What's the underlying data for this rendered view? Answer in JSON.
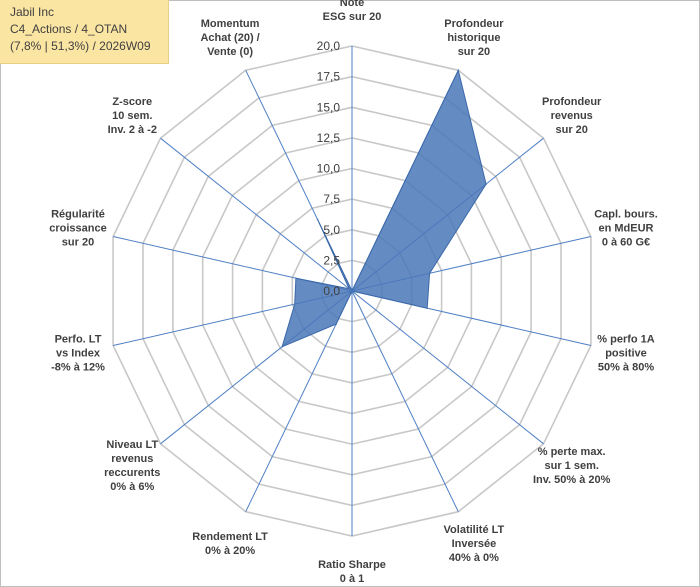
{
  "info_box": {
    "line1": "Jabil Inc",
    "line2": "C4_Actions / 4_OTAN",
    "line3": "(7,8% | 51,3%) / 2026W09"
  },
  "chart_data": {
    "type": "radar",
    "title": "",
    "scale": {
      "min": 0,
      "max": 20,
      "step": 2.5
    },
    "tick_labels": [
      "0,0",
      "2,5",
      "5,0",
      "7,5",
      "10,0",
      "12,5",
      "15,0",
      "17,5",
      "20,0"
    ],
    "categories": [
      [
        "Note",
        "ESG sur 20"
      ],
      [
        "Profondeur",
        "historique",
        "sur 20"
      ],
      [
        "Profondeur",
        "revenus",
        "sur 20"
      ],
      [
        "Capl. bours.",
        "en MdEUR",
        "0 à 60 G€"
      ],
      [
        "% perfo 1A",
        "positive",
        "50% à 80%"
      ],
      [
        "% perte max.",
        "sur 1 sem.",
        "Inv. 50% à 20%"
      ],
      [
        "Volatilité LT",
        "Inversée",
        "40% à 0%"
      ],
      [
        "Ratio Sharpe",
        "0 à 1"
      ],
      [
        "Rendement LT",
        "0% à 20%"
      ],
      [
        "Niveau LT",
        "revenus",
        "reccurents",
        "0% à 6%"
      ],
      [
        "Perfo. LT",
        "vs Index",
        "-8% à 12%"
      ],
      [
        "Régularité",
        "croissance",
        "sur 20"
      ],
      [
        "Z-score",
        "10 sem.",
        "Inv. 2 à -2"
      ],
      [
        "Momentum",
        "Achat (20) /",
        "Vente (0)"
      ]
    ],
    "series": [
      {
        "values": [
          0,
          20,
          14,
          6.5,
          6.3,
          0,
          0,
          0,
          3,
          7.3,
          4.8,
          4.7,
          0.3,
          6.5
        ],
        "color": "#4a77b8"
      }
    ],
    "grid": true,
    "legend": "none"
  }
}
